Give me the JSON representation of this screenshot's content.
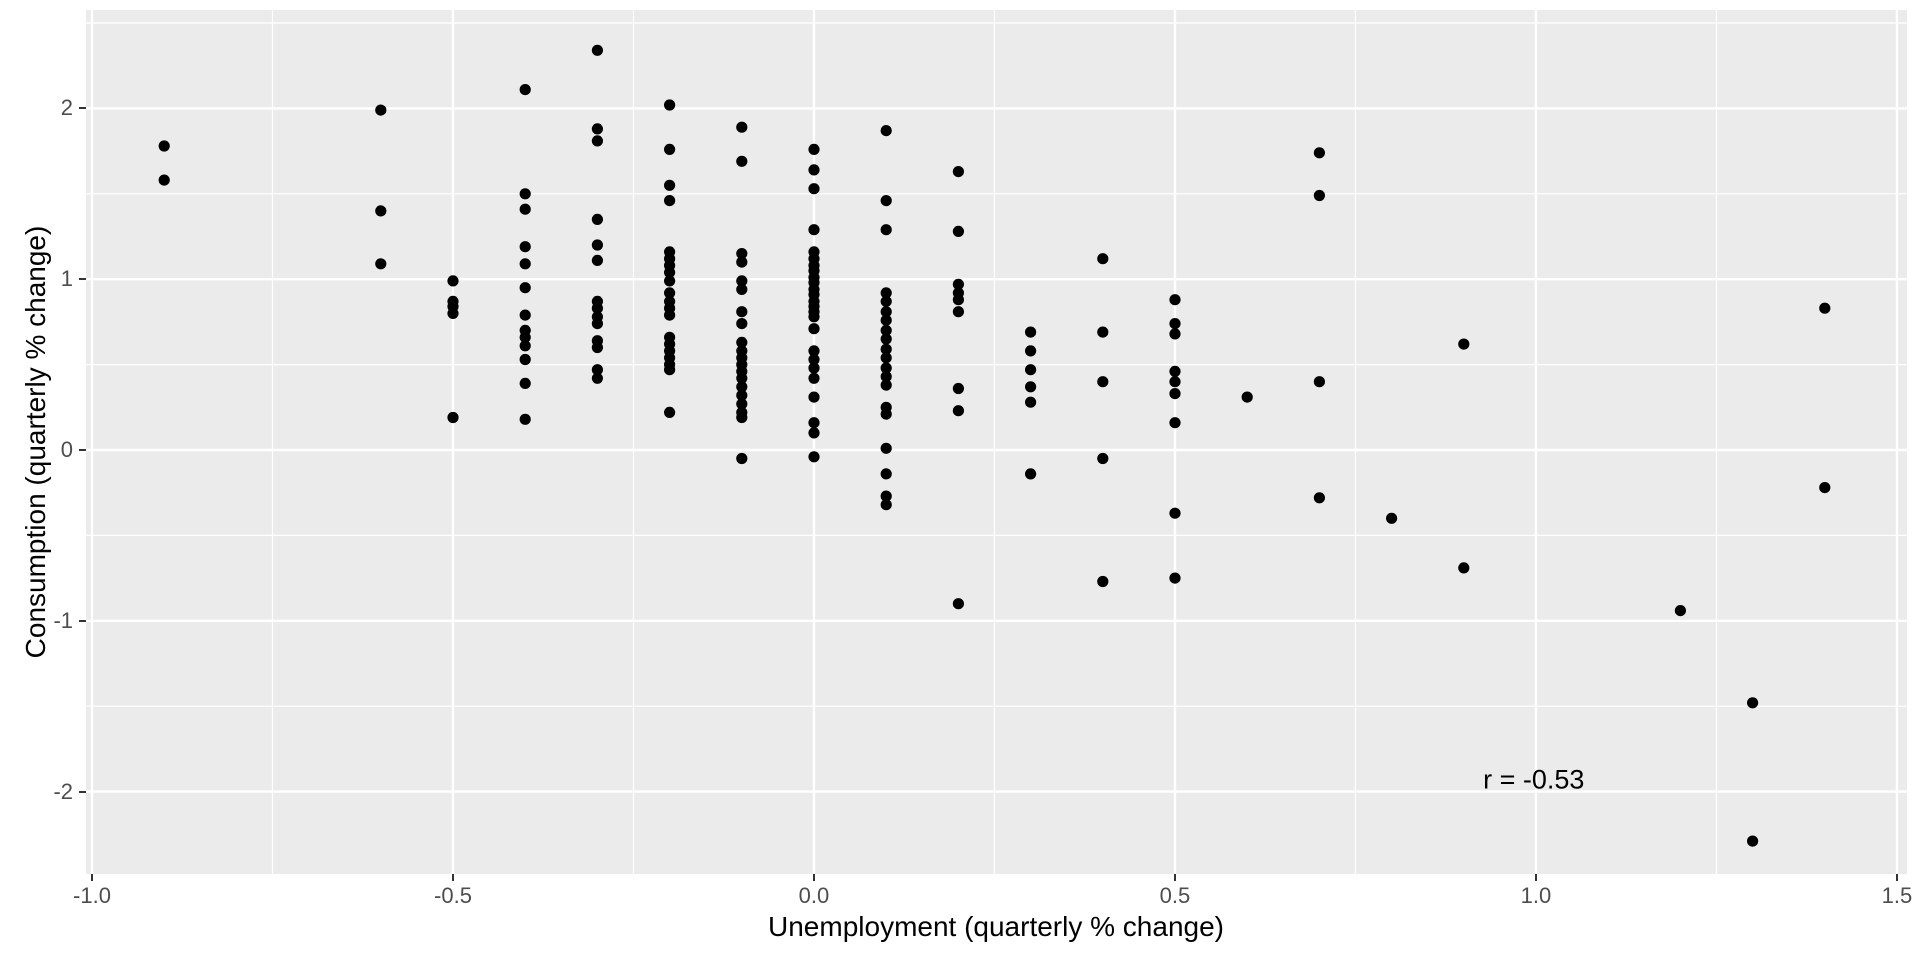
{
  "chart_data": {
    "type": "scatter",
    "title": "",
    "xlabel": "Unemployment (quarterly % change)",
    "ylabel": "Consumption (quarterly % change)",
    "xlim": [
      -1.0083,
      1.5139
    ],
    "ylim": [
      -2.4824,
      2.5761
    ],
    "grid": true,
    "legend": "none",
    "x_ticks": [
      {
        "value": -1.0,
        "label": "-1.0"
      },
      {
        "value": -0.5,
        "label": "-0.5"
      },
      {
        "value": 0.0,
        "label": "0.0"
      },
      {
        "value": 0.5,
        "label": "0.5"
      },
      {
        "value": 1.0,
        "label": "1.0"
      },
      {
        "value": 1.5,
        "label": "1.5"
      }
    ],
    "y_ticks": [
      {
        "value": -2,
        "label": "-2"
      },
      {
        "value": -1,
        "label": "-1"
      },
      {
        "value": 0,
        "label": "0"
      },
      {
        "value": 1,
        "label": "1"
      },
      {
        "value": 2,
        "label": "2"
      }
    ],
    "x_minor_ticks": [
      -0.75,
      -0.25,
      0.25,
      0.75,
      1.25
    ],
    "y_minor_ticks": [
      2.5,
      1.5,
      0.5,
      -0.5,
      -1.5
    ],
    "annotation": {
      "text": "r = -0.53",
      "x": 0.997,
      "y": -1.93
    },
    "points": [
      [
        -0.9,
        1.78
      ],
      [
        -0.9,
        1.58
      ],
      [
        -0.6,
        1.99
      ],
      [
        -0.6,
        1.4
      ],
      [
        -0.6,
        1.09
      ],
      [
        -0.5,
        0.99
      ],
      [
        -0.5,
        0.87
      ],
      [
        -0.5,
        0.84
      ],
      [
        -0.5,
        0.8
      ],
      [
        -0.5,
        0.19
      ],
      [
        -0.4,
        2.11
      ],
      [
        -0.4,
        1.5
      ],
      [
        -0.4,
        1.41
      ],
      [
        -0.4,
        1.19
      ],
      [
        -0.4,
        1.09
      ],
      [
        -0.4,
        0.95
      ],
      [
        -0.4,
        0.79
      ],
      [
        -0.4,
        0.7
      ],
      [
        -0.4,
        0.66
      ],
      [
        -0.4,
        0.61
      ],
      [
        -0.4,
        0.53
      ],
      [
        -0.4,
        0.39
      ],
      [
        -0.4,
        0.18
      ],
      [
        -0.3,
        2.34
      ],
      [
        -0.3,
        1.88
      ],
      [
        -0.3,
        1.81
      ],
      [
        -0.3,
        1.35
      ],
      [
        -0.3,
        1.2
      ],
      [
        -0.3,
        1.11
      ],
      [
        -0.3,
        0.87
      ],
      [
        -0.3,
        0.83
      ],
      [
        -0.3,
        0.78
      ],
      [
        -0.3,
        0.74
      ],
      [
        -0.3,
        0.64
      ],
      [
        -0.3,
        0.6
      ],
      [
        -0.3,
        0.47
      ],
      [
        -0.3,
        0.42
      ],
      [
        -0.2,
        2.02
      ],
      [
        -0.2,
        1.76
      ],
      [
        -0.2,
        1.55
      ],
      [
        -0.2,
        1.46
      ],
      [
        -0.2,
        1.16
      ],
      [
        -0.2,
        1.12
      ],
      [
        -0.2,
        1.08
      ],
      [
        -0.2,
        1.04
      ],
      [
        -0.2,
        0.99
      ],
      [
        -0.2,
        0.92
      ],
      [
        -0.2,
        0.87
      ],
      [
        -0.2,
        0.83
      ],
      [
        -0.2,
        0.79
      ],
      [
        -0.2,
        0.66
      ],
      [
        -0.2,
        0.62
      ],
      [
        -0.2,
        0.58
      ],
      [
        -0.2,
        0.54
      ],
      [
        -0.2,
        0.5
      ],
      [
        -0.2,
        0.47
      ],
      [
        -0.2,
        0.22
      ],
      [
        -0.1,
        1.89
      ],
      [
        -0.1,
        1.69
      ],
      [
        -0.1,
        1.15
      ],
      [
        -0.1,
        1.1
      ],
      [
        -0.1,
        0.99
      ],
      [
        -0.1,
        0.94
      ],
      [
        -0.1,
        0.81
      ],
      [
        -0.1,
        0.74
      ],
      [
        -0.1,
        0.63
      ],
      [
        -0.1,
        0.58
      ],
      [
        -0.1,
        0.54
      ],
      [
        -0.1,
        0.5
      ],
      [
        -0.1,
        0.46
      ],
      [
        -0.1,
        0.42
      ],
      [
        -0.1,
        0.37
      ],
      [
        -0.1,
        0.32
      ],
      [
        -0.1,
        0.27
      ],
      [
        -0.1,
        0.22
      ],
      [
        -0.1,
        0.19
      ],
      [
        -0.1,
        -0.05
      ],
      [
        0.0,
        1.76
      ],
      [
        0.0,
        1.64
      ],
      [
        0.0,
        1.53
      ],
      [
        0.0,
        1.29
      ],
      [
        0.0,
        1.16
      ],
      [
        0.0,
        1.12
      ],
      [
        0.0,
        1.08
      ],
      [
        0.0,
        1.05
      ],
      [
        0.0,
        1.01
      ],
      [
        0.0,
        0.98
      ],
      [
        0.0,
        0.94
      ],
      [
        0.0,
        0.91
      ],
      [
        0.0,
        0.87
      ],
      [
        0.0,
        0.84
      ],
      [
        0.0,
        0.81
      ],
      [
        0.0,
        0.78
      ],
      [
        0.0,
        0.71
      ],
      [
        0.0,
        0.58
      ],
      [
        0.0,
        0.53
      ],
      [
        0.0,
        0.48
      ],
      [
        0.0,
        0.42
      ],
      [
        0.0,
        0.31
      ],
      [
        0.0,
        0.16
      ],
      [
        0.0,
        0.1
      ],
      [
        0.0,
        -0.04
      ],
      [
        0.1,
        1.87
      ],
      [
        0.1,
        1.46
      ],
      [
        0.1,
        1.29
      ],
      [
        0.1,
        0.92
      ],
      [
        0.1,
        0.87
      ],
      [
        0.1,
        0.81
      ],
      [
        0.1,
        0.76
      ],
      [
        0.1,
        0.7
      ],
      [
        0.1,
        0.65
      ],
      [
        0.1,
        0.59
      ],
      [
        0.1,
        0.54
      ],
      [
        0.1,
        0.48
      ],
      [
        0.1,
        0.43
      ],
      [
        0.1,
        0.38
      ],
      [
        0.1,
        0.25
      ],
      [
        0.1,
        0.21
      ],
      [
        0.1,
        0.01
      ],
      [
        0.1,
        -0.14
      ],
      [
        0.1,
        -0.27
      ],
      [
        0.1,
        -0.32
      ],
      [
        0.2,
        1.63
      ],
      [
        0.2,
        1.28
      ],
      [
        0.2,
        0.97
      ],
      [
        0.2,
        0.92
      ],
      [
        0.2,
        0.88
      ],
      [
        0.2,
        0.81
      ],
      [
        0.2,
        0.36
      ],
      [
        0.2,
        0.23
      ],
      [
        0.2,
        -0.9
      ],
      [
        0.3,
        0.69
      ],
      [
        0.3,
        0.58
      ],
      [
        0.3,
        0.47
      ],
      [
        0.3,
        0.37
      ],
      [
        0.3,
        0.28
      ],
      [
        0.3,
        -0.14
      ],
      [
        0.4,
        1.12
      ],
      [
        0.4,
        0.69
      ],
      [
        0.4,
        0.4
      ],
      [
        0.4,
        -0.05
      ],
      [
        0.4,
        -0.77
      ],
      [
        0.5,
        0.88
      ],
      [
        0.5,
        0.74
      ],
      [
        0.5,
        0.68
      ],
      [
        0.5,
        0.46
      ],
      [
        0.5,
        0.4
      ],
      [
        0.5,
        0.33
      ],
      [
        0.5,
        0.16
      ],
      [
        0.5,
        -0.37
      ],
      [
        0.5,
        -0.75
      ],
      [
        0.6,
        0.31
      ],
      [
        0.7,
        1.74
      ],
      [
        0.7,
        1.49
      ],
      [
        0.7,
        0.4
      ],
      [
        0.7,
        -0.28
      ],
      [
        0.8,
        -0.4
      ],
      [
        0.9,
        0.62
      ],
      [
        0.9,
        -0.69
      ],
      [
        1.2,
        -0.94
      ],
      [
        1.3,
        -1.48
      ],
      [
        1.3,
        -2.29
      ],
      [
        1.4,
        0.83
      ],
      [
        1.4,
        -0.22
      ]
    ],
    "style": {
      "panel_bg": "#EBEBEB",
      "grid_color": "#FFFFFF",
      "point_color": "#000000",
      "tick_label_color": "#4D4D4D",
      "title_color": "#000000",
      "tick_mark_color": "#333333",
      "point_radius": 5.6,
      "grid_major_width": 2.4,
      "grid_minor_width": 1.2
    }
  }
}
